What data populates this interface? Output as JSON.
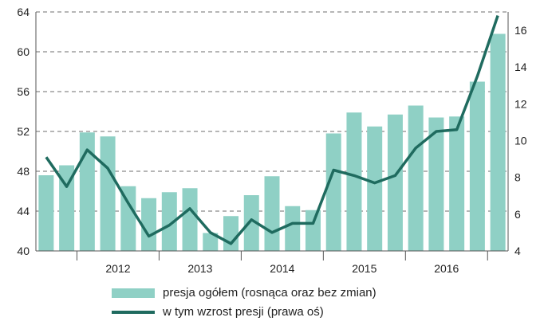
{
  "chart_data": {
    "type": "bar+line",
    "title": "",
    "left_axis": {
      "min": 40,
      "max": 64,
      "ticks": [
        "40",
        "44",
        "48",
        "52",
        "56",
        "60",
        "64"
      ]
    },
    "right_axis": {
      "min": 4,
      "max": 17,
      "ticks": [
        "4",
        "6",
        "8",
        "10",
        "12",
        "14",
        "16"
      ]
    },
    "year_labels": [
      "2012",
      "2013",
      "2014",
      "2015",
      "2016"
    ],
    "grid": "dashed horizontal",
    "bars": {
      "name": "presja ogółem (rosnąca oraz bez zmian)",
      "axis": "left",
      "color": "#8fd0c5",
      "values": [
        47.6,
        48.6,
        51.9,
        51.5,
        46.5,
        45.3,
        45.9,
        46.3,
        41.8,
        43.5,
        45.6,
        47.5,
        44.5,
        44.1,
        51.8,
        53.9,
        52.5,
        53.7,
        54.6,
        53.4,
        53.5,
        57.0,
        61.8
      ]
    },
    "line": {
      "name": "w tym wzrost presji (prawa oś)",
      "axis": "right",
      "color": "#1f6b5f",
      "values": [
        9.1,
        7.5,
        9.5,
        8.5,
        6.6,
        4.8,
        5.4,
        6.3,
        5.0,
        4.4,
        5.7,
        5.0,
        5.5,
        5.5,
        8.4,
        8.1,
        7.7,
        8.1,
        9.6,
        10.5,
        10.6,
        13.5,
        16.8
      ]
    }
  }
}
